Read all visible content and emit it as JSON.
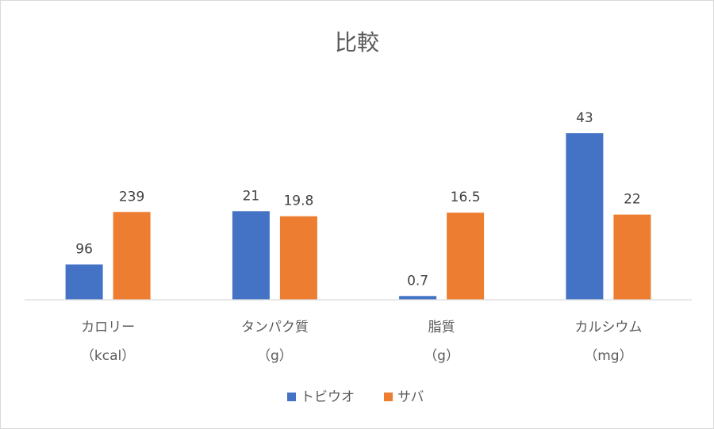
{
  "chart_data": {
    "type": "bar",
    "title": "比較",
    "categories": [
      [
        "カロリー",
        "（kcal）"
      ],
      [
        "タンパク質",
        "（g）"
      ],
      [
        "脂質",
        "（g）"
      ],
      [
        "カルシウム",
        "（mg）"
      ]
    ],
    "series": [
      {
        "name": "トビウオ",
        "color": "#4472C4",
        "values": [
          96,
          21,
          0.7,
          43
        ],
        "labels": [
          "96",
          "21",
          "0.7",
          "43"
        ]
      },
      {
        "name": "サバ",
        "color": "#ED7D31",
        "values": [
          239,
          19.8,
          16.5,
          22
        ],
        "labels": [
          "239",
          "19.8",
          "16.5",
          "22"
        ]
      }
    ],
    "xlabel": "",
    "ylabel": "",
    "grid": false,
    "legend": "bottom"
  }
}
